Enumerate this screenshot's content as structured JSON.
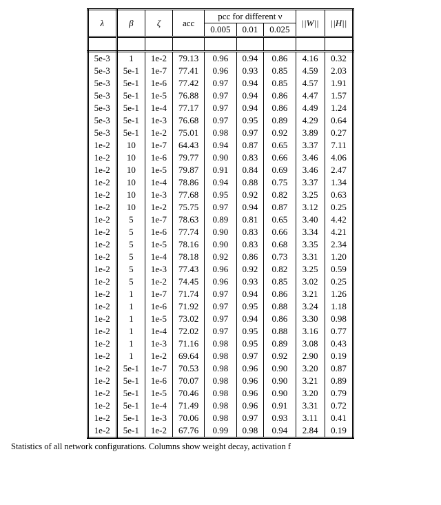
{
  "headers": {
    "lambda": "λ",
    "beta": "β",
    "zeta": "ζ",
    "acc": "acc",
    "pcc_group": "pcc for different ν",
    "nu1": "0.005",
    "nu2": "0.01",
    "nu3": "0.025",
    "normW": "||W||",
    "normH": "||H||"
  },
  "rows": [
    {
      "lambda": "5e-3",
      "beta": "1",
      "zeta": "1e-2",
      "acc": "79.13",
      "p1": "0.96",
      "p2": "0.94",
      "p3": "0.86",
      "w": "4.16",
      "h": "0.32"
    },
    {
      "lambda": "5e-3",
      "beta": "5e-1",
      "zeta": "1e-7",
      "acc": "77.41",
      "p1": "0.96",
      "p2": "0.93",
      "p3": "0.85",
      "w": "4.59",
      "h": "2.03"
    },
    {
      "lambda": "5e-3",
      "beta": "5e-1",
      "zeta": "1e-6",
      "acc": "77.42",
      "p1": "0.97",
      "p2": "0.94",
      "p3": "0.85",
      "w": "4.57",
      "h": "1.91"
    },
    {
      "lambda": "5e-3",
      "beta": "5e-1",
      "zeta": "1e-5",
      "acc": "76.88",
      "p1": "0.97",
      "p2": "0.94",
      "p3": "0.86",
      "w": "4.47",
      "h": "1.57"
    },
    {
      "lambda": "5e-3",
      "beta": "5e-1",
      "zeta": "1e-4",
      "acc": "77.17",
      "p1": "0.97",
      "p2": "0.94",
      "p3": "0.86",
      "w": "4.49",
      "h": "1.24"
    },
    {
      "lambda": "5e-3",
      "beta": "5e-1",
      "zeta": "1e-3",
      "acc": "76.68",
      "p1": "0.97",
      "p2": "0.95",
      "p3": "0.89",
      "w": "4.29",
      "h": "0.64"
    },
    {
      "lambda": "5e-3",
      "beta": "5e-1",
      "zeta": "1e-2",
      "acc": "75.01",
      "p1": "0.98",
      "p2": "0.97",
      "p3": "0.92",
      "w": "3.89",
      "h": "0.27"
    },
    {
      "lambda": "1e-2",
      "beta": "10",
      "zeta": "1e-7",
      "acc": "64.43",
      "p1": "0.94",
      "p2": "0.87",
      "p3": "0.65",
      "w": "3.37",
      "h": "7.11"
    },
    {
      "lambda": "1e-2",
      "beta": "10",
      "zeta": "1e-6",
      "acc": "79.77",
      "p1": "0.90",
      "p2": "0.83",
      "p3": "0.66",
      "w": "3.46",
      "h": "4.06"
    },
    {
      "lambda": "1e-2",
      "beta": "10",
      "zeta": "1e-5",
      "acc": "79.87",
      "p1": "0.91",
      "p2": "0.84",
      "p3": "0.69",
      "w": "3.46",
      "h": "2.47"
    },
    {
      "lambda": "1e-2",
      "beta": "10",
      "zeta": "1e-4",
      "acc": "78.86",
      "p1": "0.94",
      "p2": "0.88",
      "p3": "0.75",
      "w": "3.37",
      "h": "1.34"
    },
    {
      "lambda": "1e-2",
      "beta": "10",
      "zeta": "1e-3",
      "acc": "77.68",
      "p1": "0.95",
      "p2": "0.92",
      "p3": "0.82",
      "w": "3.25",
      "h": "0.63"
    },
    {
      "lambda": "1e-2",
      "beta": "10",
      "zeta": "1e-2",
      "acc": "75.75",
      "p1": "0.97",
      "p2": "0.94",
      "p3": "0.87",
      "w": "3.12",
      "h": "0.25"
    },
    {
      "lambda": "1e-2",
      "beta": "5",
      "zeta": "1e-7",
      "acc": "78.63",
      "p1": "0.89",
      "p2": "0.81",
      "p3": "0.65",
      "w": "3.40",
      "h": "4.42"
    },
    {
      "lambda": "1e-2",
      "beta": "5",
      "zeta": "1e-6",
      "acc": "77.74",
      "p1": "0.90",
      "p2": "0.83",
      "p3": "0.66",
      "w": "3.34",
      "h": "4.21"
    },
    {
      "lambda": "1e-2",
      "beta": "5",
      "zeta": "1e-5",
      "acc": "78.16",
      "p1": "0.90",
      "p2": "0.83",
      "p3": "0.68",
      "w": "3.35",
      "h": "2.34"
    },
    {
      "lambda": "1e-2",
      "beta": "5",
      "zeta": "1e-4",
      "acc": "78.18",
      "p1": "0.92",
      "p2": "0.86",
      "p3": "0.73",
      "w": "3.31",
      "h": "1.20"
    },
    {
      "lambda": "1e-2",
      "beta": "5",
      "zeta": "1e-3",
      "acc": "77.43",
      "p1": "0.96",
      "p2": "0.92",
      "p3": "0.82",
      "w": "3.25",
      "h": "0.59"
    },
    {
      "lambda": "1e-2",
      "beta": "5",
      "zeta": "1e-2",
      "acc": "74.45",
      "p1": "0.96",
      "p2": "0.93",
      "p3": "0.85",
      "w": "3.02",
      "h": "0.25"
    },
    {
      "lambda": "1e-2",
      "beta": "1",
      "zeta": "1e-7",
      "acc": "71.74",
      "p1": "0.97",
      "p2": "0.94",
      "p3": "0.86",
      "w": "3.21",
      "h": "1.26"
    },
    {
      "lambda": "1e-2",
      "beta": "1",
      "zeta": "1e-6",
      "acc": "71.92",
      "p1": "0.97",
      "p2": "0.95",
      "p3": "0.88",
      "w": "3.24",
      "h": "1.18"
    },
    {
      "lambda": "1e-2",
      "beta": "1",
      "zeta": "1e-5",
      "acc": "73.02",
      "p1": "0.97",
      "p2": "0.94",
      "p3": "0.86",
      "w": "3.30",
      "h": "0.98"
    },
    {
      "lambda": "1e-2",
      "beta": "1",
      "zeta": "1e-4",
      "acc": "72.02",
      "p1": "0.97",
      "p2": "0.95",
      "p3": "0.88",
      "w": "3.16",
      "h": "0.77"
    },
    {
      "lambda": "1e-2",
      "beta": "1",
      "zeta": "1e-3",
      "acc": "71.16",
      "p1": "0.98",
      "p2": "0.95",
      "p3": "0.89",
      "w": "3.08",
      "h": "0.43"
    },
    {
      "lambda": "1e-2",
      "beta": "1",
      "zeta": "1e-2",
      "acc": "69.64",
      "p1": "0.98",
      "p2": "0.97",
      "p3": "0.92",
      "w": "2.90",
      "h": "0.19"
    },
    {
      "lambda": "1e-2",
      "beta": "5e-1",
      "zeta": "1e-7",
      "acc": "70.53",
      "p1": "0.98",
      "p2": "0.96",
      "p3": "0.90",
      "w": "3.20",
      "h": "0.87"
    },
    {
      "lambda": "1e-2",
      "beta": "5e-1",
      "zeta": "1e-6",
      "acc": "70.07",
      "p1": "0.98",
      "p2": "0.96",
      "p3": "0.90",
      "w": "3.21",
      "h": "0.89"
    },
    {
      "lambda": "1e-2",
      "beta": "5e-1",
      "zeta": "1e-5",
      "acc": "70.46",
      "p1": "0.98",
      "p2": "0.96",
      "p3": "0.90",
      "w": "3.20",
      "h": "0.79"
    },
    {
      "lambda": "1e-2",
      "beta": "5e-1",
      "zeta": "1e-4",
      "acc": "71.49",
      "p1": "0.98",
      "p2": "0.96",
      "p3": "0.91",
      "w": "3.31",
      "h": "0.72"
    },
    {
      "lambda": "1e-2",
      "beta": "5e-1",
      "zeta": "1e-3",
      "acc": "70.06",
      "p1": "0.98",
      "p2": "0.97",
      "p3": "0.93",
      "w": "3.11",
      "h": "0.41"
    },
    {
      "lambda": "1e-2",
      "beta": "5e-1",
      "zeta": "1e-2",
      "acc": "67.76",
      "p1": "0.99",
      "p2": "0.98",
      "p3": "0.94",
      "w": "2.84",
      "h": "0.19"
    }
  ],
  "caption": "Statistics of all network configurations. Columns show weight decay, activation f"
}
